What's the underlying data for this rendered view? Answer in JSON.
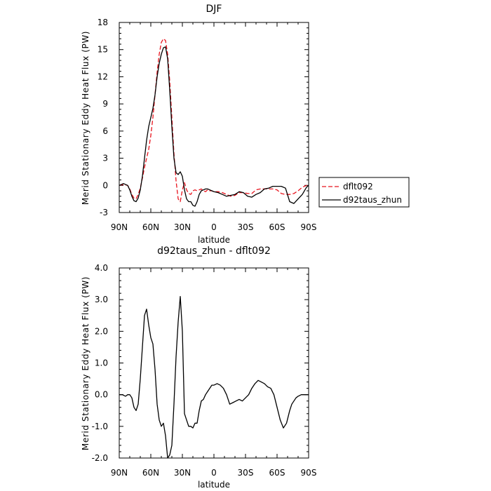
{
  "chart_data": [
    {
      "type": "line",
      "title": "DJF",
      "xlabel": "latitude",
      "ylabel": "Merid Stationary Eddy Heat Flux (PW)",
      "xlim": [
        90,
        -90
      ],
      "ylim": [
        -3,
        18
      ],
      "x_ticks": [
        90,
        60,
        30,
        0,
        -30,
        -60,
        -90
      ],
      "x_tick_labels": [
        "90N",
        "60N",
        "30N",
        "0",
        "30S",
        "60S",
        "90S"
      ],
      "y_ticks": [
        -3,
        0,
        3,
        6,
        9,
        12,
        15,
        18
      ],
      "y_tick_labels": [
        "-3",
        "0",
        "3",
        "6",
        "9",
        "12",
        "15",
        "18"
      ],
      "legend_position": "right",
      "series": [
        {
          "name": "dflt092",
          "color": "#e8141e",
          "dash": "dashed",
          "x": [
            90,
            86,
            82,
            80,
            78,
            76,
            74,
            72,
            70,
            68,
            66,
            64,
            62,
            60,
            58,
            56,
            54,
            52,
            50,
            48,
            46,
            44,
            42,
            40,
            38,
            36,
            34,
            32,
            30,
            28,
            26,
            24,
            22,
            20,
            18,
            16,
            14,
            12,
            10,
            8,
            6,
            4,
            2,
            0,
            -4,
            -8,
            -12,
            -16,
            -20,
            -24,
            -28,
            -32,
            -36,
            -40,
            -44,
            -48,
            -52,
            -56,
            -60,
            -64,
            -68,
            -72,
            -76,
            -80,
            -84,
            -88,
            -90
          ],
          "y": [
            0.0,
            0.1,
            0.0,
            -0.4,
            -1.0,
            -1.4,
            -1.5,
            -1.0,
            -0.3,
            0.8,
            2.0,
            3.0,
            4.0,
            5.5,
            7.5,
            10.0,
            12.5,
            14.5,
            15.8,
            16.2,
            16.0,
            14.5,
            11.5,
            7.5,
            3.5,
            0.5,
            -1.5,
            -1.8,
            -0.5,
            0.3,
            -0.5,
            -0.9,
            -1.0,
            -0.6,
            -0.5,
            -0.6,
            -0.5,
            -0.4,
            -0.6,
            -0.7,
            -0.5,
            -0.6,
            -0.6,
            -0.7,
            -0.7,
            -0.8,
            -1.0,
            -1.2,
            -1.1,
            -0.8,
            -0.8,
            -0.9,
            -0.9,
            -0.5,
            -0.4,
            -0.4,
            -0.4,
            -0.4,
            -0.5,
            -0.9,
            -1.0,
            -1.0,
            -0.9,
            -0.6,
            -0.2,
            0.0,
            0.0
          ]
        },
        {
          "name": "d92taus_zhun",
          "color": "#000000",
          "dash": "solid",
          "x": [
            90,
            86,
            82,
            80,
            78,
            76,
            74,
            72,
            70,
            68,
            66,
            64,
            62,
            60,
            58,
            56,
            54,
            52,
            50,
            48,
            46,
            44,
            42,
            40,
            38,
            36,
            34,
            32,
            30,
            28,
            26,
            24,
            22,
            20,
            18,
            16,
            14,
            12,
            10,
            8,
            6,
            4,
            2,
            0,
            -4,
            -8,
            -12,
            -16,
            -20,
            -24,
            -28,
            -32,
            -36,
            -40,
            -44,
            -48,
            -52,
            -56,
            -60,
            -64,
            -68,
            -72,
            -76,
            -80,
            -84,
            -88,
            -90
          ],
          "y": [
            0.0,
            0.2,
            0.0,
            -0.5,
            -1.2,
            -1.7,
            -1.8,
            -1.4,
            -0.5,
            1.0,
            3.0,
            5.0,
            6.5,
            7.5,
            8.5,
            10.0,
            12.0,
            13.5,
            14.5,
            15.2,
            15.3,
            14.0,
            10.5,
            6.5,
            3.0,
            1.4,
            1.2,
            1.5,
            1.0,
            -0.5,
            -1.5,
            -1.8,
            -1.8,
            -2.2,
            -2.3,
            -1.8,
            -1.0,
            -0.6,
            -0.5,
            -0.4,
            -0.4,
            -0.5,
            -0.6,
            -0.7,
            -0.8,
            -1.0,
            -1.2,
            -1.1,
            -1.0,
            -0.7,
            -0.8,
            -1.2,
            -1.3,
            -1.0,
            -0.8,
            -0.4,
            -0.3,
            -0.1,
            -0.1,
            -0.1,
            -0.3,
            -1.8,
            -2.0,
            -1.5,
            -1.0,
            -0.2,
            0.0
          ]
        }
      ]
    },
    {
      "type": "line",
      "title": "d92taus_zhun - dflt092",
      "xlabel": "latitude",
      "ylabel": "Merid Stationary Eddy Heat Flux (PW)",
      "xlim": [
        90,
        -90
      ],
      "ylim": [
        -2.0,
        4.0
      ],
      "x_ticks": [
        90,
        60,
        30,
        0,
        -30,
        -60,
        -90
      ],
      "x_tick_labels": [
        "90N",
        "60N",
        "30N",
        "0",
        "30S",
        "60S",
        "90S"
      ],
      "y_ticks": [
        -2.0,
        -1.0,
        0.0,
        1.0,
        2.0,
        3.0,
        4.0
      ],
      "y_tick_labels": [
        "-2.0",
        "-1.0",
        "0.0",
        "1.0",
        "2.0",
        "3.0",
        "4.0"
      ],
      "series": [
        {
          "color": "#000000",
          "dash": "solid",
          "x": [
            90,
            87,
            84,
            82,
            80,
            78,
            76,
            74,
            72,
            70,
            68,
            66,
            64,
            62,
            60,
            58,
            56,
            54,
            52,
            50,
            48,
            46,
            44,
            42,
            40,
            38,
            36,
            34,
            32,
            30,
            28,
            26,
            24,
            22,
            20,
            18,
            16,
            14,
            12,
            10,
            8,
            6,
            4,
            2,
            0,
            -3,
            -6,
            -9,
            -12,
            -15,
            -18,
            -21,
            -24,
            -27,
            -30,
            -33,
            -36,
            -39,
            -42,
            -45,
            -48,
            -51,
            -54,
            -57,
            -60,
            -63,
            -66,
            -69,
            -72,
            -74,
            -76,
            -78,
            -80,
            -83,
            -86,
            -90
          ],
          "y": [
            0.0,
            0.0,
            -0.05,
            0.0,
            0.0,
            -0.1,
            -0.4,
            -0.5,
            -0.3,
            0.5,
            1.5,
            2.5,
            2.7,
            2.2,
            1.8,
            1.6,
            0.8,
            -0.3,
            -0.8,
            -1.0,
            -0.9,
            -1.3,
            -2.0,
            -1.9,
            -1.6,
            -0.3,
            1.2,
            2.3,
            3.1,
            2.0,
            -0.6,
            -0.8,
            -1.0,
            -1.0,
            -1.05,
            -0.9,
            -0.9,
            -0.5,
            -0.2,
            -0.15,
            0.0,
            0.1,
            0.2,
            0.3,
            0.3,
            0.35,
            0.3,
            0.2,
            0.0,
            -0.3,
            -0.25,
            -0.2,
            -0.15,
            -0.2,
            -0.1,
            0.0,
            0.2,
            0.35,
            0.45,
            0.4,
            0.35,
            0.25,
            0.2,
            0.0,
            -0.4,
            -0.8,
            -1.05,
            -0.9,
            -0.5,
            -0.3,
            -0.2,
            -0.1,
            -0.05,
            0.0,
            0.0,
            0.0
          ]
        }
      ]
    }
  ]
}
